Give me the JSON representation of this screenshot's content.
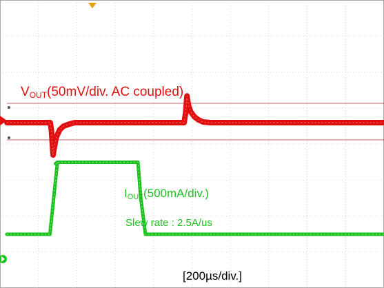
{
  "chart_data": {
    "type": "line",
    "title": "",
    "xlabel": "[200µs/div.]",
    "x_unit": "µs",
    "x_range": [
      0,
      2000
    ],
    "grid": true,
    "series": [
      {
        "name": "VOUT",
        "label_main": "V",
        "label_sub": "OUT",
        "label_rest": "(50mV/div. AC coupled)",
        "color": "#e01010",
        "scale": "50mV/div",
        "coupling": "AC",
        "y_unit": "mV",
        "points": [
          [
            0,
            0
          ],
          [
            230,
            0
          ],
          [
            236,
            -10
          ],
          [
            245,
            -45
          ],
          [
            252,
            -34
          ],
          [
            262,
            -20
          ],
          [
            280,
            -10
          ],
          [
            300,
            -5
          ],
          [
            330,
            -2
          ],
          [
            360,
            0
          ],
          [
            940,
            0
          ],
          [
            948,
            14
          ],
          [
            955,
            37
          ],
          [
            963,
            24
          ],
          [
            975,
            15
          ],
          [
            995,
            8
          ],
          [
            1015,
            4
          ],
          [
            1040,
            1
          ],
          [
            1080,
            0
          ],
          [
            2000,
            0
          ]
        ]
      },
      {
        "name": "IOUT",
        "label_main": "I",
        "label_sub": "OUT",
        "label_rest": "(500mA/div.)",
        "color": "#1ec01e",
        "scale": "500mA/div",
        "y_unit": "mA",
        "points": [
          [
            0,
            0
          ],
          [
            228,
            0
          ],
          [
            268,
            1000
          ],
          [
            258,
            980
          ],
          [
            268,
            1000
          ],
          [
            695,
            1000
          ],
          [
            710,
            500
          ],
          [
            735,
            0
          ],
          [
            2000,
            0
          ]
        ]
      }
    ],
    "annotations": [
      {
        "text": "Slew rate : 2.5A/us",
        "color": "#1ec01e"
      }
    ]
  }
}
